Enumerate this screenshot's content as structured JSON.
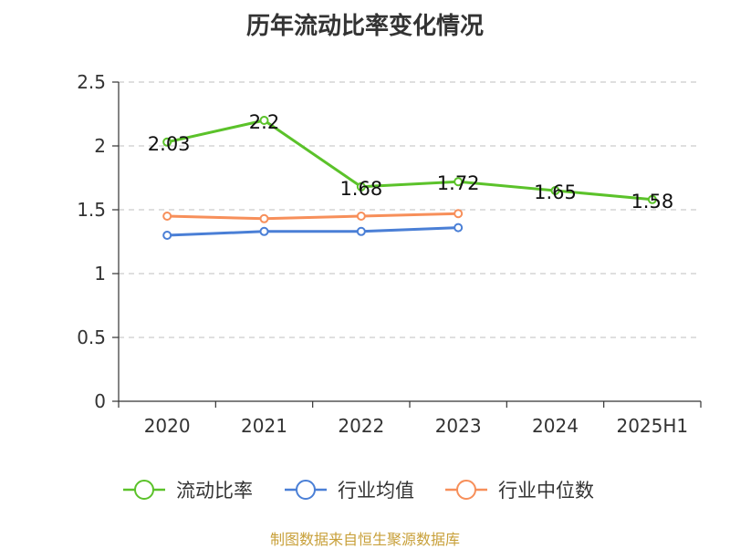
{
  "title": "历年流动比率变化情况",
  "footer": "制图数据来自恒生聚源数据库",
  "colors": {
    "current_ratio": "#5bc22a",
    "industry_avg": "#4a7fd6",
    "industry_median": "#f78f5a"
  },
  "chart_data": {
    "type": "line",
    "categories": [
      "2020",
      "2021",
      "2022",
      "2023",
      "2024",
      "2025H1"
    ],
    "ylim": [
      0,
      2.5
    ],
    "yticks": [
      "0",
      "0.5",
      "1",
      "1.5",
      "2",
      "2.5"
    ],
    "grid": true,
    "legend_position": "bottom",
    "series": [
      {
        "name": "流动比率",
        "values": [
          2.03,
          2.2,
          1.68,
          1.72,
          1.65,
          1.58
        ],
        "labels": [
          "2.03",
          "2.2",
          "1.68",
          "1.72",
          "1.65",
          "1.58"
        ]
      },
      {
        "name": "行业均值",
        "values": [
          1.3,
          1.33,
          1.33,
          1.36,
          null,
          null
        ]
      },
      {
        "name": "行业中位数",
        "values": [
          1.45,
          1.43,
          1.45,
          1.47,
          null,
          null
        ]
      }
    ]
  }
}
